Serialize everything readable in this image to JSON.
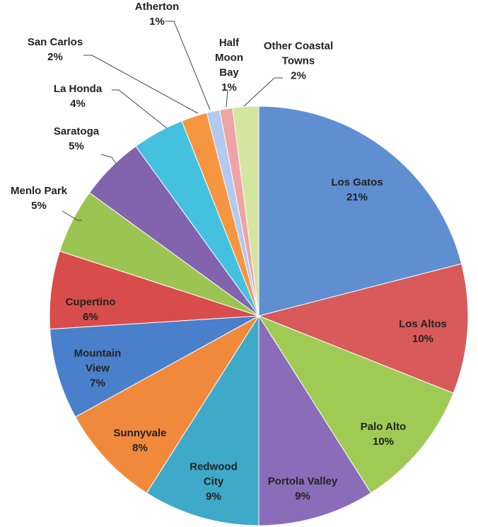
{
  "chart_data": {
    "type": "pie",
    "categories": [
      "Los Gatos",
      "Los Altos",
      "Palo Alto",
      "Portola Valley",
      "Redwood City",
      "Sunnyvale",
      "Mountain View",
      "Cupertino",
      "Menlo Park",
      "Saratoga",
      "La Honda",
      "San Carlos",
      "Atherton",
      "Half Moon Bay",
      "Other Coastal Towns"
    ],
    "values": [
      21,
      10,
      10,
      9,
      9,
      8,
      7,
      6,
      5,
      5,
      4,
      2,
      1,
      1,
      2
    ],
    "value_labels": [
      "21%",
      "10%",
      "10%",
      "9%",
      "9%",
      "8%",
      "7%",
      "6%",
      "5%",
      "5%",
      "4%",
      "2%",
      "1%",
      "1%",
      "2%"
    ],
    "colors": [
      "#5f8fd0",
      "#d85a5a",
      "#9fcb55",
      "#8a6cb8",
      "#3fa9c9",
      "#f0893c",
      "#4a7fcc",
      "#d84c4c",
      "#9cc452",
      "#8163ae",
      "#45c1e0",
      "#f5953f",
      "#b3c9ee",
      "#eea4a4",
      "#d3e6a0"
    ]
  }
}
